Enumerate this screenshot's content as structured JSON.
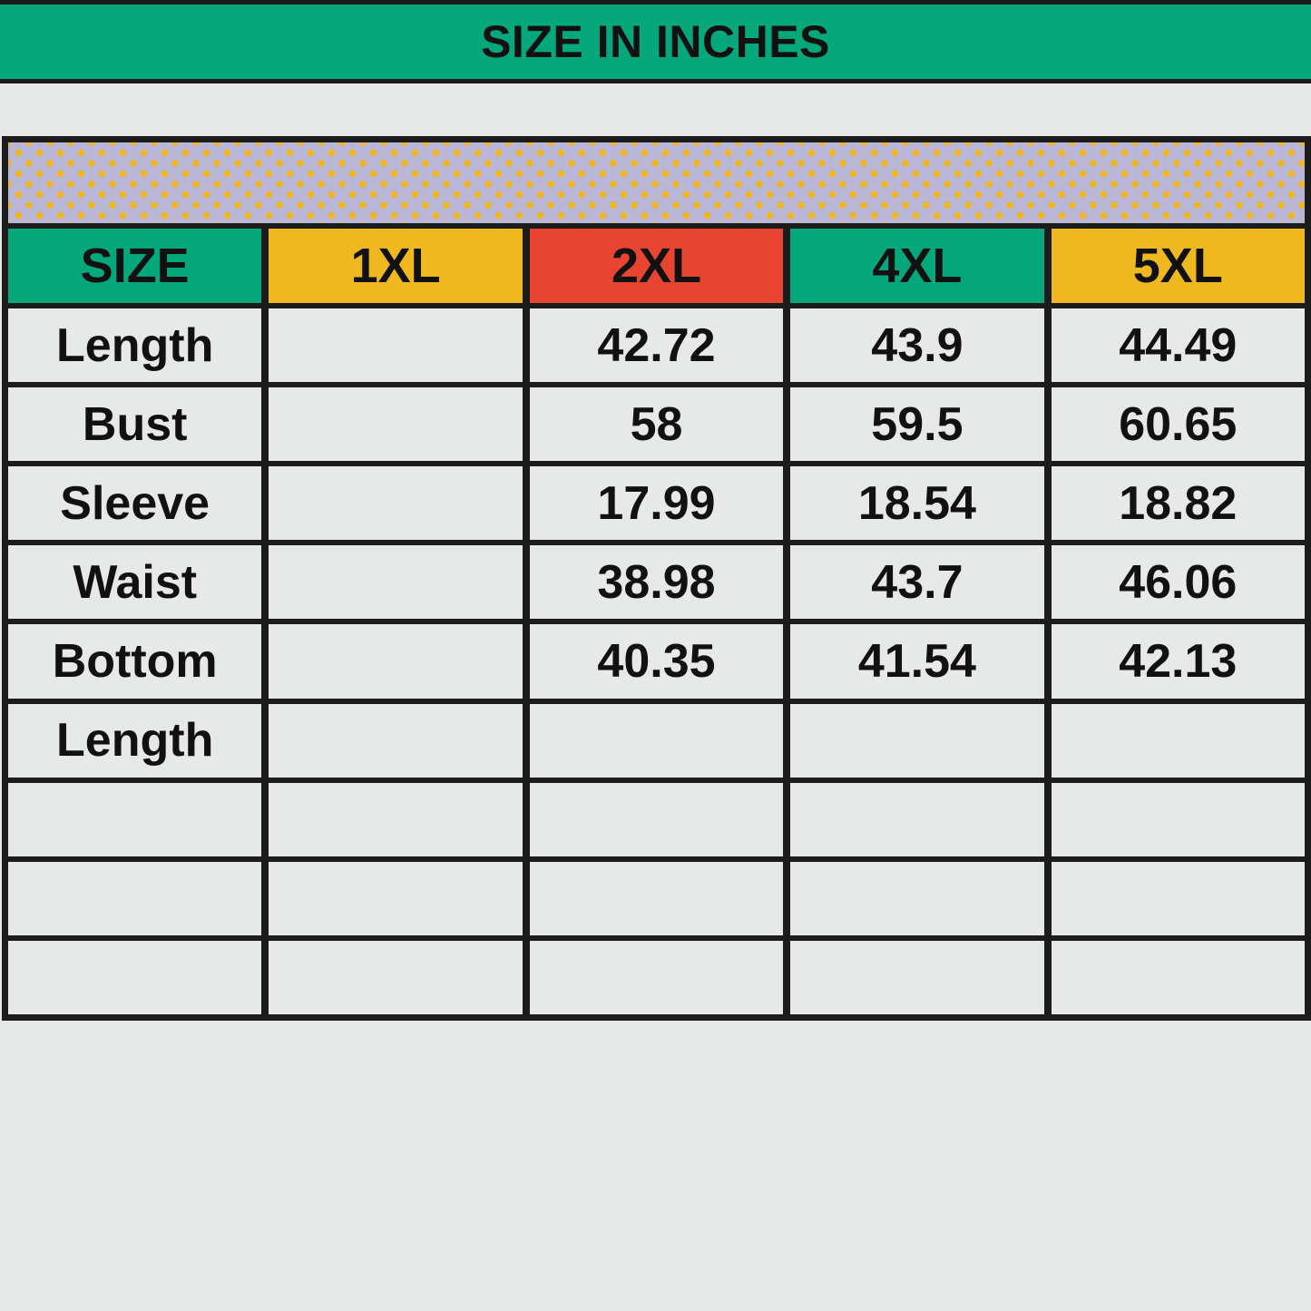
{
  "title": "SIZE IN INCHES",
  "colors": {
    "title_bg": "#05a77b",
    "pattern_bg": "#b9b6d6",
    "pattern_dot": "#f2b51e"
  },
  "header": [
    {
      "label": "SIZE",
      "color": "#05a77b"
    },
    {
      "label": "1XL",
      "color": "#efb820"
    },
    {
      "label": "2XL",
      "color": "#e84432"
    },
    {
      "label": "4XL",
      "color": "#05a77b"
    },
    {
      "label": "5XL",
      "color": "#efb820"
    }
  ],
  "rows": [
    [
      "Length",
      "",
      "42.72",
      "43.9",
      "44.49"
    ],
    [
      "Bust",
      "",
      "58",
      "59.5",
      "60.65"
    ],
    [
      "Sleeve",
      "",
      "17.99",
      "18.54",
      "18.82"
    ],
    [
      "Waist",
      "",
      "38.98",
      "43.7",
      "46.06"
    ],
    [
      "Bottom",
      "",
      "40.35",
      "41.54",
      "42.13"
    ],
    [
      "Length",
      "",
      "",
      "",
      ""
    ],
    [
      "",
      "",
      "",
      "",
      ""
    ],
    [
      "",
      "",
      "",
      "",
      ""
    ],
    [
      "",
      "",
      "",
      "",
      ""
    ]
  ]
}
